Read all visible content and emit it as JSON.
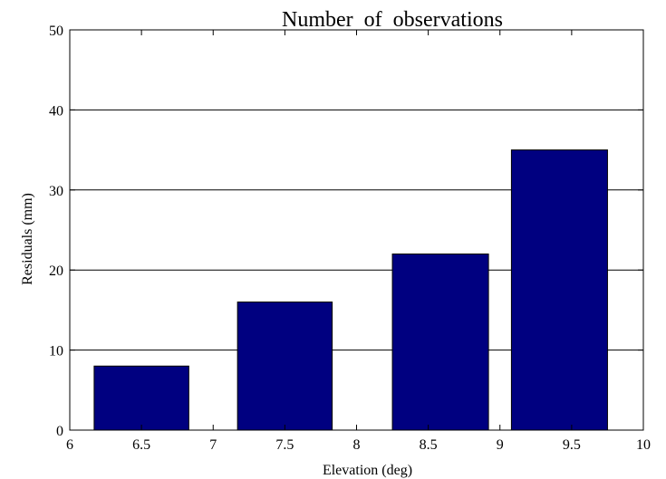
{
  "chart_data": {
    "type": "bar",
    "title": "Number  of  observations",
    "xlabel": "Elevation (deg)",
    "ylabel": "Residuals (mm)",
    "x": [
      6.5,
      7.5,
      8.5,
      9.5
    ],
    "values": [
      8,
      16,
      22,
      35
    ],
    "bar_edges": [
      [
        6.17,
        6.83
      ],
      [
        7.17,
        7.83
      ],
      [
        8.25,
        8.92
      ],
      [
        9.08,
        9.75
      ]
    ],
    "xlim": [
      6,
      10
    ],
    "ylim": [
      0,
      50
    ],
    "xticks": [
      "6",
      "6.5",
      "7",
      "7.5",
      "8",
      "8.5",
      "9",
      "9.5",
      "10"
    ],
    "xtick_values": [
      6,
      6.5,
      7,
      7.5,
      8,
      8.5,
      9,
      9.5,
      10
    ],
    "yticks": [
      "0",
      "10",
      "20",
      "30",
      "40",
      "50"
    ],
    "ytick_values": [
      0,
      10,
      20,
      30,
      40,
      50
    ],
    "grid": "horizontal",
    "bar_color": "#000080"
  }
}
